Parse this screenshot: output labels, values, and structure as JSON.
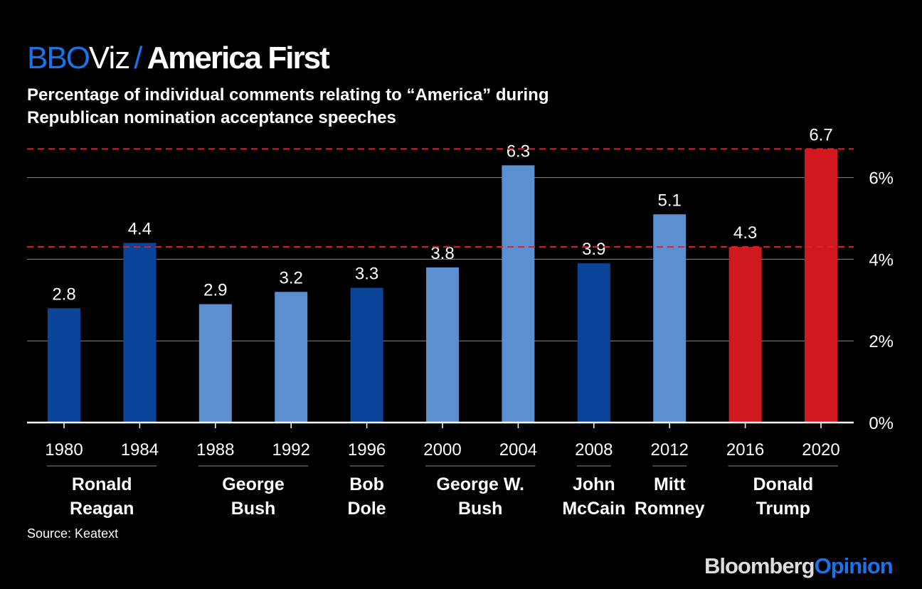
{
  "header": {
    "brand": "BBO",
    "brand2": "Viz",
    "slash": "/",
    "title": "America First"
  },
  "chart_data": {
    "type": "bar",
    "title": "America First",
    "subtitle": "Percentage of individual comments relating to “America” during Republican nomination acceptance speeches",
    "categories": [
      "1980",
      "1984",
      "1988",
      "1992",
      "1996",
      "2000",
      "2004",
      "2008",
      "2012",
      "2016",
      "2020"
    ],
    "values": [
      2.8,
      4.4,
      2.9,
      3.2,
      3.3,
      3.8,
      6.3,
      3.9,
      5.1,
      4.3,
      6.7
    ],
    "value_labels": [
      "2.8",
      "4.4",
      "2.9",
      "3.2",
      "3.3",
      "3.8",
      "6.3",
      "3.9",
      "5.1",
      "4.3",
      "6.7"
    ],
    "bar_colors": [
      "#0a4499",
      "#0a4499",
      "#5b8fd0",
      "#5b8fd0",
      "#0a4499",
      "#5b8fd0",
      "#5b8fd0",
      "#0a4499",
      "#5b8fd0",
      "#d0191f",
      "#d0191f"
    ],
    "groups": [
      {
        "name": [
          "Ronald",
          "Reagan"
        ],
        "from": 0,
        "to": 1
      },
      {
        "name": [
          "George",
          "Bush"
        ],
        "from": 2,
        "to": 3
      },
      {
        "name": [
          "Bob",
          "Dole"
        ],
        "from": 4,
        "to": 4
      },
      {
        "name": [
          "George W.",
          "Bush"
        ],
        "from": 5,
        "to": 6
      },
      {
        "name": [
          "John",
          "McCain"
        ],
        "from": 7,
        "to": 7
      },
      {
        "name": [
          "Mitt",
          "Romney"
        ],
        "from": 8,
        "to": 8
      },
      {
        "name": [
          "Donald",
          "Trump"
        ],
        "from": 9,
        "to": 10
      }
    ],
    "reference_lines": [
      6.7,
      4.3
    ],
    "reference_color": "#e0202a",
    "ylim": [
      0,
      6.9
    ],
    "yticks": [
      0,
      2,
      4,
      6
    ],
    "ytick_labels": [
      "0%",
      "2%",
      "4%",
      "6%"
    ],
    "grid": true,
    "axis_position": "right"
  },
  "footer": {
    "source": "Source: Keatext",
    "logo_a": "Bloomberg",
    "logo_b": "Opinion"
  }
}
